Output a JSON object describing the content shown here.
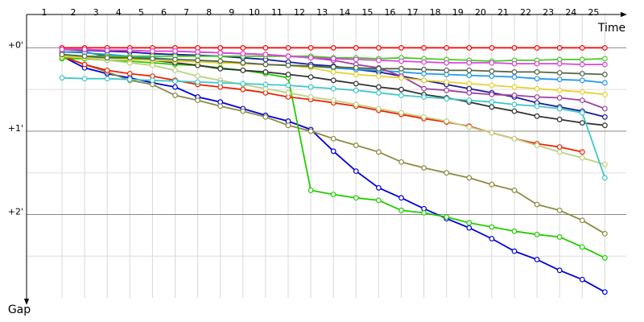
{
  "chart_data": {
    "type": "line",
    "x_label": "Time",
    "y_label": "Gap",
    "categories": [
      "1",
      "2",
      "3",
      "4",
      "5",
      "6",
      "7",
      "8",
      "9",
      "10",
      "11",
      "12",
      "13",
      "14",
      "15",
      "16",
      "17",
      "18",
      "19",
      "20",
      "21",
      "22",
      "23",
      "24",
      "25"
    ],
    "ylim": [
      -0.4,
      3.0
    ],
    "y_inverted": true,
    "yticks": [
      {
        "value": 0,
        "label": "+0'"
      },
      {
        "value": 1,
        "label": "+1'"
      },
      {
        "value": 2,
        "label": "+2'"
      }
    ],
    "y_minor_ticks": [
      0.5,
      1.5,
      2.5
    ],
    "grid": true,
    "series": [
      {
        "color": "#ff0000",
        "values": [
          0,
          0,
          0,
          0,
          0,
          0,
          0,
          0,
          0,
          0,
          0,
          0,
          0,
          0,
          0,
          0,
          0,
          0,
          0,
          0,
          0,
          0,
          0,
          0,
          0
        ]
      },
      {
        "color": "#0000dd",
        "values": [
          0.1,
          0.24,
          0.31,
          0.36,
          0.42,
          0.47,
          0.59,
          0.65,
          0.73,
          0.81,
          0.88,
          0.98,
          1.24,
          1.48,
          1.68,
          1.8,
          1.93,
          2.05,
          2.16,
          2.29,
          2.44,
          2.54,
          2.67,
          2.78,
          2.93
        ]
      },
      {
        "color": "#22cc00",
        "values": [
          0.13,
          0.13,
          0.15,
          0.16,
          0.18,
          0.2,
          0.21,
          0.24,
          0.27,
          0.31,
          0.36,
          1.71,
          1.76,
          1.8,
          1.83,
          1.95,
          1.98,
          2.03,
          2.1,
          2.15,
          2.2,
          2.24,
          2.27,
          2.39,
          2.52
        ]
      },
      {
        "color": "#8a8a40",
        "values": [
          0.1,
          0.2,
          0.29,
          0.39,
          0.44,
          0.57,
          0.63,
          0.7,
          0.76,
          0.83,
          0.93,
          1.0,
          1.09,
          1.17,
          1.25,
          1.37,
          1.44,
          1.5,
          1.56,
          1.64,
          1.71,
          1.88,
          1.95,
          2.07,
          2.23
        ]
      },
      {
        "color": "#ee2200",
        "values": [
          0.1,
          0.2,
          0.27,
          0.31,
          0.34,
          0.39,
          0.44,
          0.47,
          0.5,
          0.54,
          0.59,
          0.62,
          0.66,
          0.7,
          0.75,
          0.8,
          0.85,
          0.89,
          0.94,
          1.02,
          1.09,
          1.15,
          1.19,
          1.25,
          null
        ]
      },
      {
        "color": "#bcd080",
        "values": [
          0.08,
          0.12,
          0.15,
          0.18,
          0.21,
          0.27,
          0.34,
          0.39,
          0.44,
          0.49,
          0.54,
          0.59,
          0.63,
          0.68,
          0.73,
          0.78,
          0.83,
          0.88,
          0.95,
          1.02,
          1.09,
          1.17,
          1.25,
          1.32,
          1.4
        ]
      },
      {
        "color": "#333333",
        "values": [
          0.05,
          0.05,
          0.1,
          0.12,
          0.15,
          0.18,
          0.21,
          0.25,
          0.27,
          0.29,
          0.32,
          0.35,
          0.39,
          0.43,
          0.47,
          0.5,
          0.56,
          0.6,
          0.65,
          0.71,
          0.76,
          0.82,
          0.86,
          0.9,
          0.93
        ]
      },
      {
        "color": "#1a1a9a",
        "values": [
          0.02,
          0.03,
          0.04,
          0.05,
          0.07,
          0.08,
          0.09,
          0.1,
          0.12,
          0.14,
          0.17,
          0.2,
          0.22,
          0.26,
          0.29,
          0.34,
          0.39,
          0.44,
          0.49,
          0.54,
          0.59,
          0.66,
          0.71,
          0.76,
          0.83
        ]
      },
      {
        "color": "#40c8c8",
        "values": [
          0.36,
          0.37,
          0.37,
          0.38,
          0.39,
          0.4,
          0.41,
          0.42,
          0.43,
          0.44,
          0.45,
          0.47,
          0.49,
          0.51,
          0.54,
          0.57,
          0.59,
          0.61,
          0.63,
          0.65,
          0.68,
          0.7,
          0.73,
          0.78,
          1.56
        ]
      },
      {
        "color": "#2299ee",
        "values": [
          0.05,
          0.06,
          0.08,
          0.1,
          0.12,
          0.14,
          0.15,
          0.17,
          0.18,
          0.2,
          0.21,
          0.22,
          0.24,
          0.26,
          0.27,
          0.29,
          0.31,
          0.32,
          0.33,
          0.34,
          0.35,
          0.37,
          0.38,
          0.39,
          0.42
        ]
      },
      {
        "color": "#a040a0",
        "values": [
          0.02,
          0.02,
          0.03,
          0.03,
          0.04,
          0.04,
          0.05,
          0.06,
          0.07,
          0.08,
          0.1,
          0.12,
          0.15,
          0.2,
          0.24,
          0.34,
          0.49,
          0.51,
          0.54,
          0.56,
          0.57,
          0.59,
          0.6,
          0.63,
          0.73
        ]
      },
      {
        "color": "#44cc22",
        "values": [
          0.12,
          0.1,
          0.1,
          0.1,
          0.1,
          0.1,
          0.1,
          0.1,
          0.1,
          0.1,
          0.1,
          0.1,
          0.12,
          0.12,
          0.13,
          0.12,
          0.13,
          0.14,
          0.15,
          0.16,
          0.15,
          0.15,
          0.14,
          0.14,
          0.13
        ]
      },
      {
        "color": "#e8d030",
        "values": [
          0.1,
          0.12,
          0.12,
          0.14,
          0.15,
          0.16,
          0.17,
          0.18,
          0.19,
          0.2,
          0.21,
          0.24,
          0.29,
          0.32,
          0.34,
          0.36,
          0.39,
          0.41,
          0.43,
          0.45,
          0.47,
          0.49,
          0.51,
          0.53,
          0.56
        ]
      },
      {
        "color": "#dd44dd",
        "values": [
          0.02,
          0.02,
          0.03,
          0.03,
          0.04,
          0.04,
          0.05,
          0.06,
          0.07,
          0.08,
          0.1,
          0.12,
          0.13,
          0.14,
          0.15,
          0.16,
          0.17,
          0.18,
          0.18,
          0.18,
          0.19,
          0.19,
          0.19,
          0.2,
          0.2
        ]
      },
      {
        "color": "#556644",
        "values": [
          0.08,
          0.1,
          0.12,
          0.12,
          0.13,
          0.14,
          0.15,
          0.16,
          0.18,
          0.2,
          0.21,
          0.22,
          0.23,
          0.24,
          0.25,
          0.25,
          0.26,
          0.27,
          0.27,
          0.28,
          0.29,
          0.29,
          0.3,
          0.31,
          0.32
        ]
      }
    ]
  }
}
